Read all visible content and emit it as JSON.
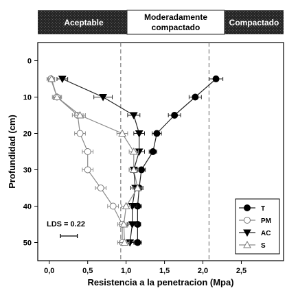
{
  "chart_data": {
    "type": "line",
    "xlabel": "Resistencia a la penetracion (Mpa)",
    "ylabel": "Profundidad (cm)",
    "xlim": [
      -0.15,
      3.05
    ],
    "ylim": [
      -5,
      55
    ],
    "y_inverted": true,
    "xticks": [
      "0,0",
      "0,5",
      "1,0",
      "1,5",
      "2,0",
      "2,5"
    ],
    "xtick_values": [
      0,
      0.5,
      1.0,
      1.5,
      2.0,
      2.5
    ],
    "yticks": [
      "0",
      "10",
      "20",
      "30",
      "40",
      "50"
    ],
    "ytick_values": [
      0,
      10,
      20,
      30,
      40,
      50
    ],
    "grid": false,
    "legend_position": "bottom-right",
    "reference_lines_x": [
      0.93,
      2.08
    ],
    "bands": [
      {
        "label": "Aceptable",
        "fill": "#2b2b2b",
        "text_color": "#ffffff"
      },
      {
        "label_line1": "Moderadamente",
        "label_line2": "compactado",
        "fill": "#ffffff",
        "text_color": "#000000"
      },
      {
        "label": "Compactado",
        "fill": "#2b2b2b",
        "text_color": "#ffffff"
      }
    ],
    "annotation": "LDS = 0.22",
    "lds_value": 0.22,
    "series": [
      {
        "name": "T",
        "marker": "circle",
        "fill": "#000000",
        "x": [
          2.17,
          1.9,
          1.63,
          1.4,
          1.35,
          1.2,
          1.17,
          1.15,
          1.15,
          1.15
        ],
        "y": [
          5,
          10,
          15,
          20,
          25,
          30,
          35,
          40,
          45,
          50
        ],
        "xerr": [
          0.09,
          0.08,
          0.08,
          0.06,
          0.05,
          0.05,
          0.05,
          0.05,
          0.04,
          0.05
        ]
      },
      {
        "name": "PM",
        "marker": "circle",
        "fill": "#ffffff",
        "x": [
          0.02,
          0.1,
          0.37,
          0.4,
          0.5,
          0.5,
          0.67,
          0.83,
          0.95,
          0.95
        ],
        "y": [
          5,
          10,
          15,
          20,
          25,
          30,
          35,
          40,
          45,
          50
        ],
        "xerr": [
          0.05,
          0.05,
          0.07,
          0.07,
          0.07,
          0.07,
          0.07,
          0.07,
          0.06,
          0.06
        ]
      },
      {
        "name": "AC",
        "marker": "triangle-down",
        "fill": "#000000",
        "x": [
          0.17,
          0.7,
          1.1,
          1.17,
          1.17,
          1.1,
          1.12,
          1.08,
          1.08,
          1.05
        ],
        "y": [
          5,
          10,
          15,
          20,
          25,
          30,
          35,
          40,
          45,
          50
        ],
        "xerr": [
          0.07,
          0.12,
          0.08,
          0.07,
          0.07,
          0.06,
          0.06,
          0.06,
          0.06,
          0.06
        ]
      },
      {
        "name": "S",
        "marker": "triangle-up",
        "fill": "#ffffff",
        "x": [
          0.03,
          0.1,
          0.4,
          0.95,
          1.1,
          1.1,
          1.15,
          1.0,
          0.97,
          0.98
        ],
        "y": [
          5,
          10,
          15,
          20,
          25,
          30,
          35,
          40,
          45,
          50
        ],
        "xerr": [
          0.04,
          0.06,
          0.07,
          0.07,
          0.06,
          0.06,
          0.06,
          0.06,
          0.06,
          0.06
        ]
      }
    ]
  }
}
